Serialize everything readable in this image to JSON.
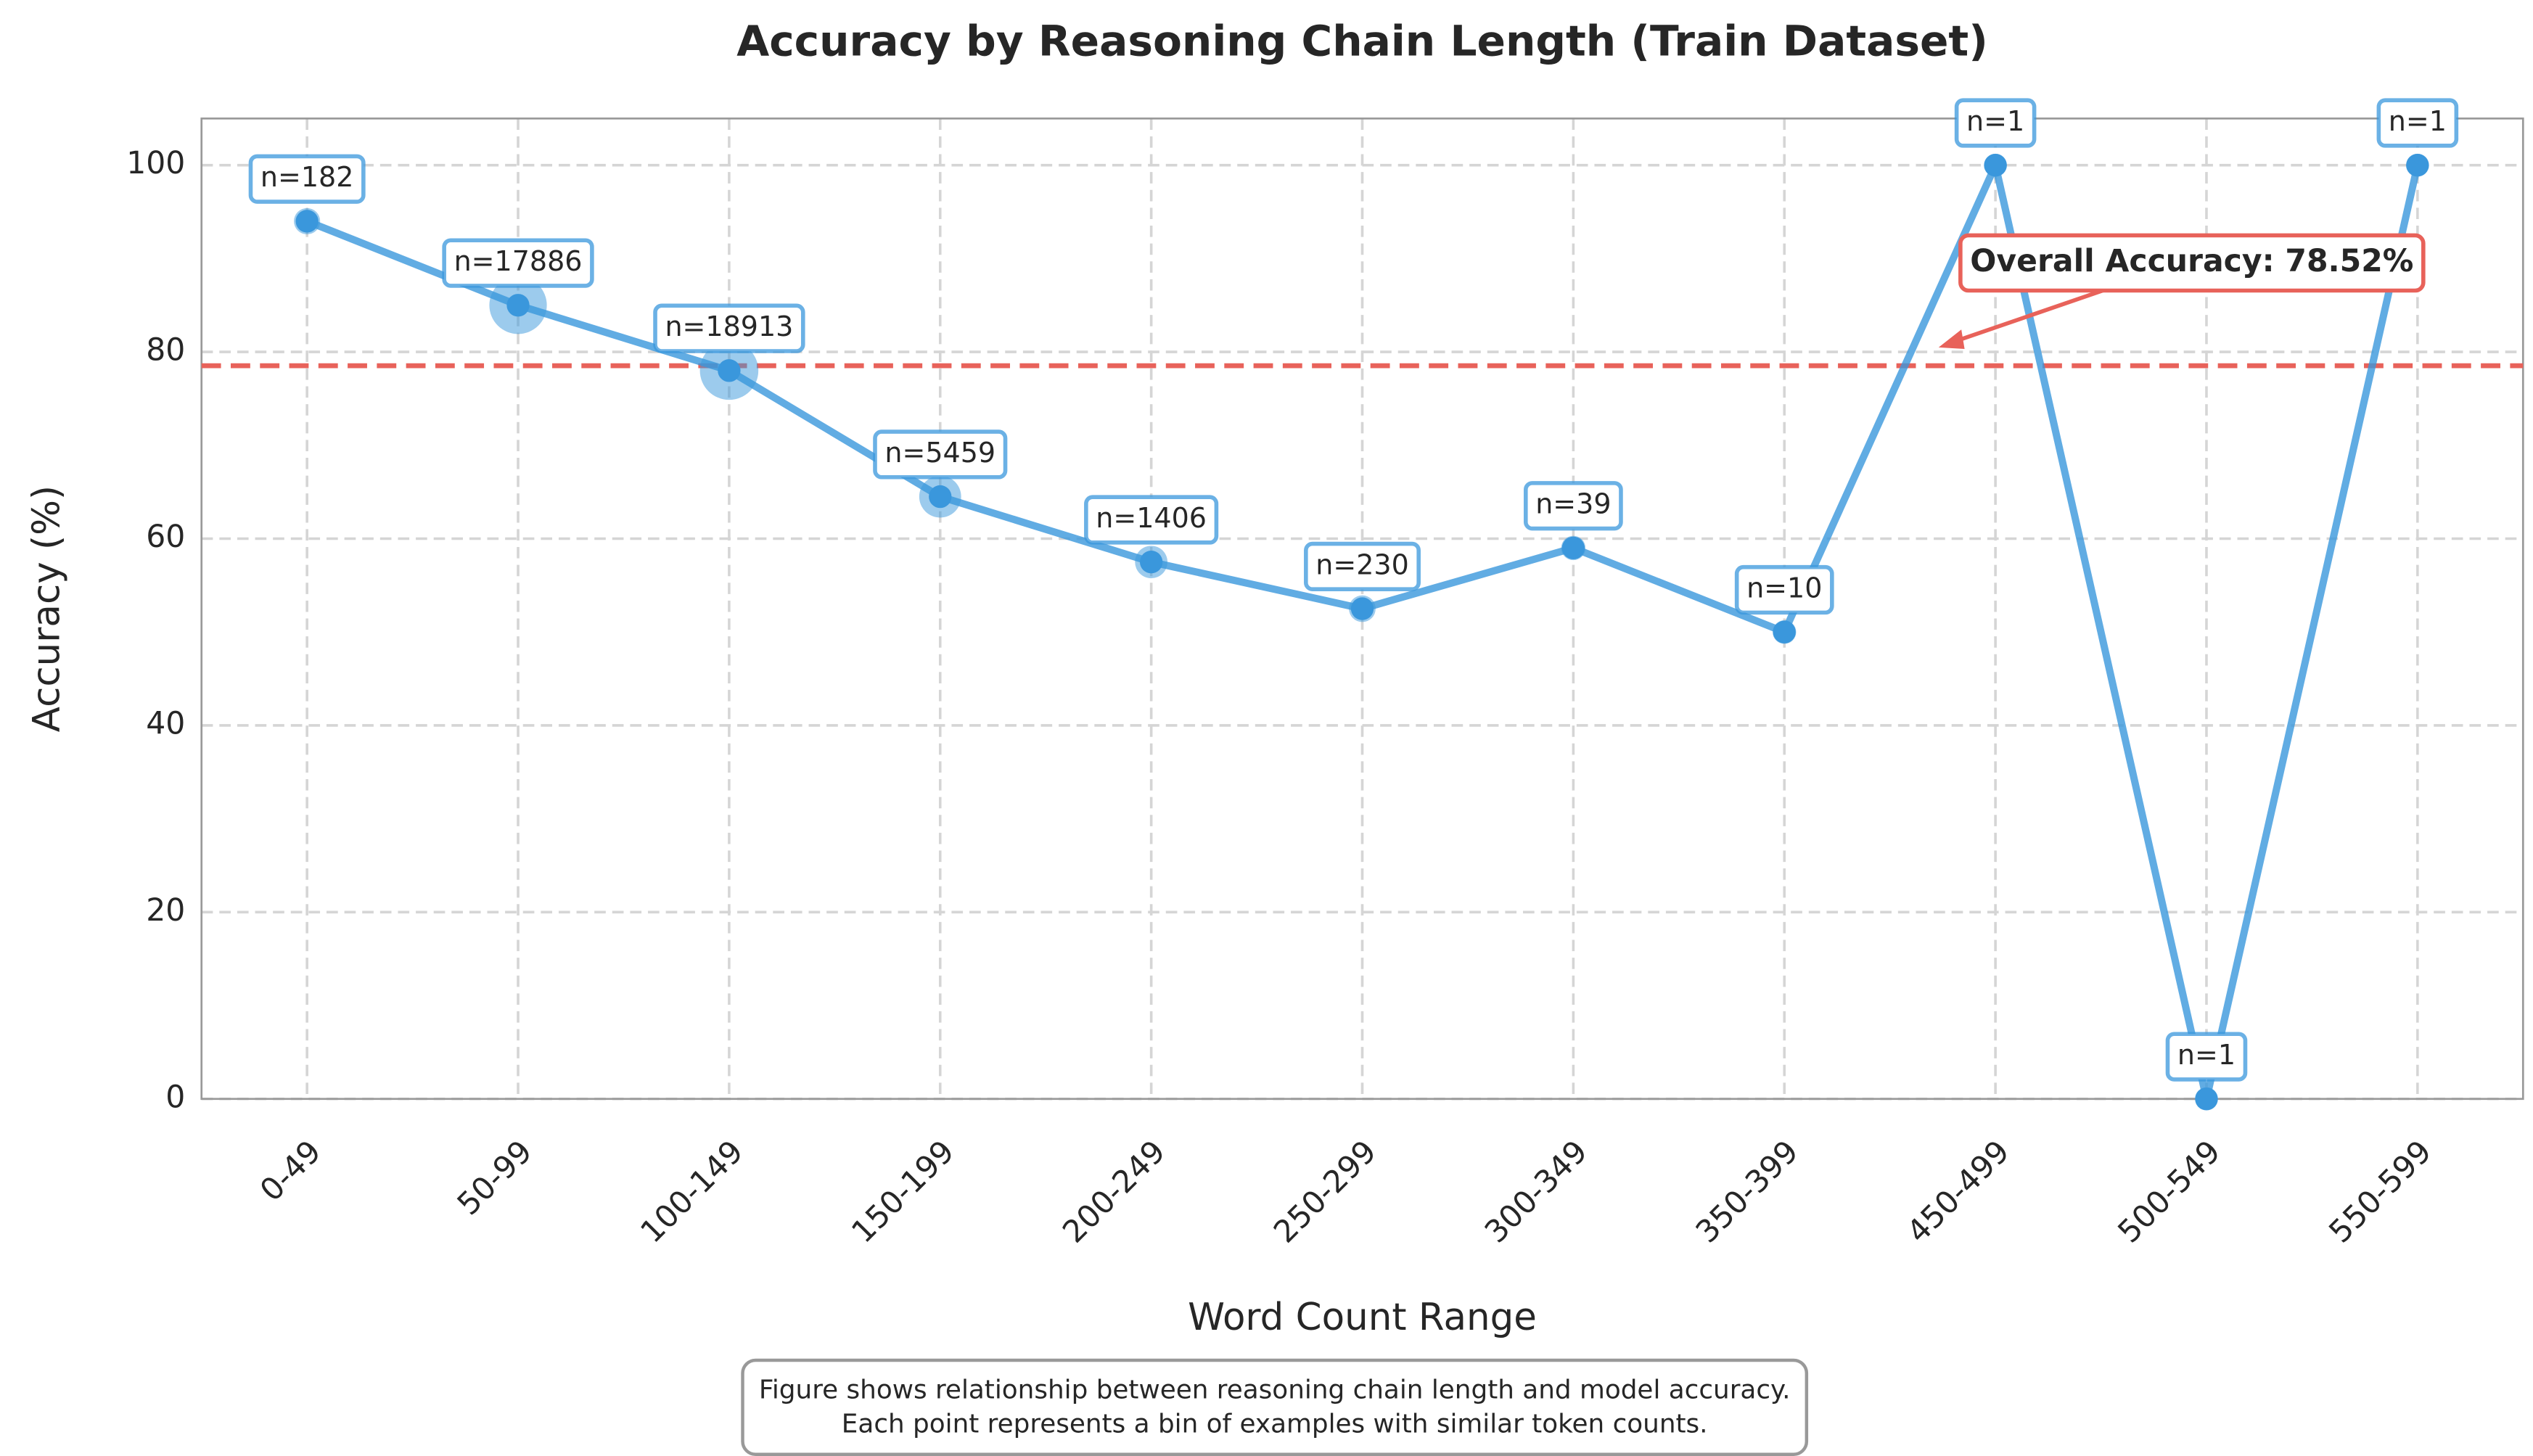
{
  "chart_data": {
    "type": "line",
    "title": "Accuracy by Reasoning Chain Length (Train Dataset)",
    "x_label": "Word Count Range",
    "y_label": "Accuracy (%)",
    "categories": [
      "0-49",
      "50-99",
      "100-149",
      "150-199",
      "200-249",
      "250-299",
      "300-349",
      "350-399",
      "450-499",
      "500-549",
      "550-599"
    ],
    "values": [
      94,
      85,
      78,
      64.5,
      57.5,
      52.5,
      59,
      50,
      100,
      0,
      100
    ],
    "sizes": [
      182,
      17886,
      18913,
      5459,
      1406,
      230,
      39,
      10,
      1,
      1,
      1
    ],
    "size_labels": [
      "n=182",
      "n=17886",
      "n=18913",
      "n=5459",
      "n=1406",
      "n=230",
      "n=39",
      "n=10",
      "n=1",
      "n=1",
      "n=1"
    ],
    "color": "#3a97dc",
    "ylim": [
      0,
      105
    ],
    "yticks": [
      0,
      20,
      40,
      60,
      80,
      100
    ],
    "grid": true,
    "reference_line": {
      "value": 78.52,
      "label": "Overall Accuracy: 78.52%",
      "color": "#e8625a"
    },
    "footnote": [
      "Figure shows relationship between reasoning chain length and model accuracy.",
      "Each point represents a bin of examples with similar token counts."
    ]
  }
}
